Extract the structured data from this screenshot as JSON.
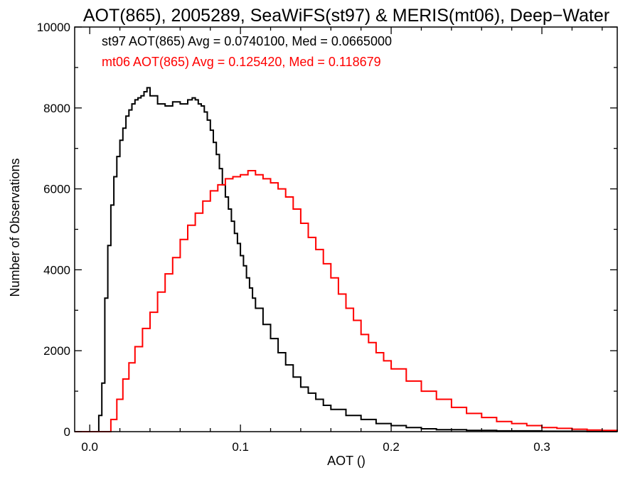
{
  "chart_data": {
    "type": "line",
    "title": "AOT(865), 2005289, SeaWiFS(st97) & MERIS(mt06), Deep−Water",
    "xlabel": "AOT ()",
    "ylabel": "Number of Observations",
    "xlim": [
      -0.01,
      0.35
    ],
    "ylim": [
      0,
      10000
    ],
    "x_ticks": [
      0.0,
      0.1,
      0.2,
      0.3
    ],
    "x_tick_labels": [
      "0.0",
      "0.1",
      "0.2",
      "0.3"
    ],
    "y_ticks": [
      0,
      2000,
      4000,
      6000,
      8000,
      10000
    ],
    "y_tick_labels": [
      "0",
      "2000",
      "4000",
      "6000",
      "8000",
      "10000"
    ],
    "step": "histogram",
    "grid": false,
    "annotations": [
      {
        "text": "st97 AOT(865) Avg = 0.0740100, Med = 0.0665000",
        "color": "#000000"
      },
      {
        "text": "mt06 AOT(865) Avg = 0.125420, Med = 0.118679",
        "color": "#ff0000"
      }
    ],
    "series": [
      {
        "color": "#000000",
        "x": [
          -0.01,
          0.0,
          0.004,
          0.006,
          0.008,
          0.01,
          0.012,
          0.014,
          0.016,
          0.018,
          0.02,
          0.022,
          0.024,
          0.026,
          0.028,
          0.03,
          0.032,
          0.034,
          0.036,
          0.038,
          0.04,
          0.045,
          0.05,
          0.055,
          0.06,
          0.065,
          0.068,
          0.07,
          0.072,
          0.074,
          0.076,
          0.078,
          0.08,
          0.082,
          0.084,
          0.086,
          0.088,
          0.09,
          0.092,
          0.094,
          0.096,
          0.098,
          0.1,
          0.102,
          0.104,
          0.106,
          0.108,
          0.11,
          0.115,
          0.12,
          0.125,
          0.13,
          0.135,
          0.14,
          0.145,
          0.15,
          0.155,
          0.16,
          0.17,
          0.18,
          0.19,
          0.2,
          0.21,
          0.22,
          0.23,
          0.25,
          0.27,
          0.3,
          0.33,
          0.35
        ],
        "y": [
          0,
          0,
          0,
          400,
          1200,
          3300,
          4600,
          5600,
          6300,
          6800,
          7200,
          7500,
          7800,
          7950,
          8100,
          8200,
          8250,
          8300,
          8400,
          8500,
          8300,
          8100,
          8050,
          8150,
          8100,
          8200,
          8250,
          8200,
          8100,
          8050,
          7900,
          7700,
          7450,
          7150,
          6850,
          6500,
          6100,
          5800,
          5500,
          5200,
          4900,
          4650,
          4350,
          4100,
          3800,
          3550,
          3300,
          3050,
          2650,
          2300,
          1950,
          1650,
          1350,
          1100,
          950,
          800,
          650,
          550,
          400,
          300,
          200,
          150,
          100,
          70,
          50,
          30,
          20,
          10,
          5,
          0
        ]
      },
      {
        "color": "#ff0000",
        "x": [
          -0.01,
          0.0,
          0.01,
          0.014,
          0.018,
          0.022,
          0.026,
          0.03,
          0.035,
          0.04,
          0.045,
          0.05,
          0.055,
          0.06,
          0.065,
          0.07,
          0.075,
          0.08,
          0.085,
          0.09,
          0.095,
          0.1,
          0.105,
          0.11,
          0.115,
          0.12,
          0.125,
          0.13,
          0.135,
          0.14,
          0.145,
          0.15,
          0.155,
          0.16,
          0.165,
          0.17,
          0.175,
          0.18,
          0.185,
          0.19,
          0.195,
          0.2,
          0.21,
          0.22,
          0.23,
          0.24,
          0.25,
          0.26,
          0.27,
          0.28,
          0.29,
          0.3,
          0.31,
          0.32,
          0.33,
          0.34,
          0.35
        ],
        "y": [
          0,
          0,
          0,
          300,
          800,
          1300,
          1700,
          2100,
          2550,
          2950,
          3450,
          3900,
          4300,
          4750,
          5100,
          5400,
          5700,
          5950,
          6100,
          6250,
          6300,
          6350,
          6450,
          6350,
          6250,
          6150,
          6000,
          5800,
          5500,
          5150,
          4800,
          4500,
          4150,
          3800,
          3400,
          3050,
          2750,
          2400,
          2200,
          1950,
          1750,
          1550,
          1250,
          1000,
          800,
          600,
          450,
          350,
          250,
          200,
          150,
          100,
          80,
          60,
          40,
          30,
          20
        ]
      }
    ]
  }
}
